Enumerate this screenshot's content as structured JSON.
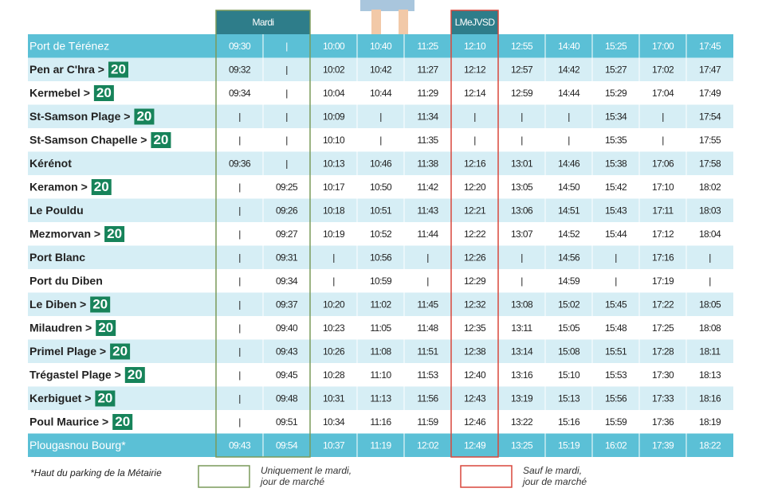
{
  "table": {
    "column_headers": [
      {
        "label": "Mardi",
        "column": 0,
        "span": 2
      },
      {
        "label": "LMeJVSD",
        "column": 5,
        "span": 1
      }
    ],
    "rows": [
      {
        "stop": "Port de Térénez",
        "times": [
          "09:30",
          "|",
          "10:00",
          "10:40",
          "11:25",
          "12:10",
          "12:55",
          "14:40",
          "15:25",
          "17:00",
          "17:45"
        ]
      },
      {
        "stop": "Pen ar C'hra >",
        "badge": "20",
        "times": [
          "09:32",
          "|",
          "10:02",
          "10:42",
          "11:27",
          "12:12",
          "12:57",
          "14:42",
          "15:27",
          "17:02",
          "17:47"
        ]
      },
      {
        "stop": "Kermebel >",
        "badge": "20",
        "times": [
          "09:34",
          "|",
          "10:04",
          "10:44",
          "11:29",
          "12:14",
          "12:59",
          "14:44",
          "15:29",
          "17:04",
          "17:49"
        ]
      },
      {
        "stop": "St-Samson Plage >",
        "badge": "20",
        "times": [
          "|",
          "|",
          "10:09",
          "|",
          "11:34",
          "|",
          "|",
          "|",
          "15:34",
          "|",
          "17:54"
        ]
      },
      {
        "stop": "St-Samson Chapelle >",
        "badge": "20",
        "times": [
          "|",
          "|",
          "10:10",
          "|",
          "11:35",
          "|",
          "|",
          "|",
          "15:35",
          "|",
          "17:55"
        ]
      },
      {
        "stop": "Kérénot",
        "times": [
          "09:36",
          "|",
          "10:13",
          "10:46",
          "11:38",
          "12:16",
          "13:01",
          "14:46",
          "15:38",
          "17:06",
          "17:58"
        ]
      },
      {
        "stop": "Keramon >",
        "badge": "20",
        "times": [
          "|",
          "09:25",
          "10:17",
          "10:50",
          "11:42",
          "12:20",
          "13:05",
          "14:50",
          "15:42",
          "17:10",
          "18:02"
        ]
      },
      {
        "stop": "Le Pouldu",
        "times": [
          "|",
          "09:26",
          "10:18",
          "10:51",
          "11:43",
          "12:21",
          "13:06",
          "14:51",
          "15:43",
          "17:11",
          "18:03"
        ]
      },
      {
        "stop": "Mezmorvan >",
        "badge": "20",
        "times": [
          "|",
          "09:27",
          "10:19",
          "10:52",
          "11:44",
          "12:22",
          "13:07",
          "14:52",
          "15:44",
          "17:12",
          "18:04"
        ]
      },
      {
        "stop": "Port Blanc",
        "times": [
          "|",
          "09:31",
          "|",
          "10:56",
          "|",
          "12:26",
          "|",
          "14:56",
          "|",
          "17:16",
          "|"
        ]
      },
      {
        "stop": "Port du Diben",
        "times": [
          "|",
          "09:34",
          "|",
          "10:59",
          "|",
          "12:29",
          "|",
          "14:59",
          "|",
          "17:19",
          "|"
        ]
      },
      {
        "stop": "Le Diben >",
        "badge": "20",
        "times": [
          "|",
          "09:37",
          "10:20",
          "11:02",
          "11:45",
          "12:32",
          "13:08",
          "15:02",
          "15:45",
          "17:22",
          "18:05"
        ]
      },
      {
        "stop": "Milaudren >",
        "badge": "20",
        "times": [
          "|",
          "09:40",
          "10:23",
          "11:05",
          "11:48",
          "12:35",
          "13:11",
          "15:05",
          "15:48",
          "17:25",
          "18:08"
        ]
      },
      {
        "stop": "Primel Plage >",
        "badge": "20",
        "times": [
          "|",
          "09:43",
          "10:26",
          "11:08",
          "11:51",
          "12:38",
          "13:14",
          "15:08",
          "15:51",
          "17:28",
          "18:11"
        ]
      },
      {
        "stop": "Trégastel Plage >",
        "badge": "20",
        "times": [
          "|",
          "09:45",
          "10:28",
          "11:10",
          "11:53",
          "12:40",
          "13:16",
          "15:10",
          "15:53",
          "17:30",
          "18:13"
        ]
      },
      {
        "stop": "Kerbiguet >",
        "badge": "20",
        "times": [
          "|",
          "09:48",
          "10:31",
          "11:13",
          "11:56",
          "12:43",
          "13:19",
          "15:13",
          "15:56",
          "17:33",
          "18:16"
        ]
      },
      {
        "stop": "Poul Maurice >",
        "badge": "20",
        "times": [
          "|",
          "09:51",
          "10:34",
          "11:16",
          "11:59",
          "12:46",
          "13:22",
          "15:16",
          "15:59",
          "17:36",
          "18:19"
        ]
      },
      {
        "stop": "Plougasnou Bourg*",
        "times": [
          "09:43",
          "09:54",
          "10:37",
          "11:19",
          "12:02",
          "12:49",
          "13:25",
          "15:19",
          "16:02",
          "17:39",
          "18:22"
        ]
      }
    ]
  },
  "footnote": "*Haut du parking de la Métairie",
  "legend": [
    {
      "line1": "Uniquement le mardi,",
      "line2": "jour de marché"
    },
    {
      "line1": "Sauf le mardi,",
      "line2": "jour de marché"
    }
  ]
}
